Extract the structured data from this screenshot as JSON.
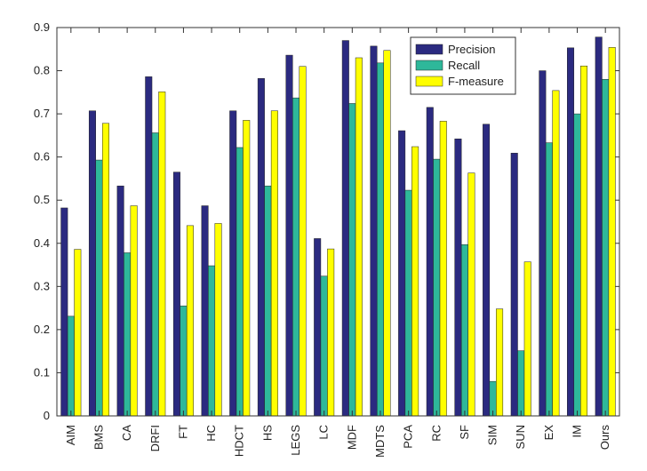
{
  "chart_data": {
    "type": "bar",
    "title": "",
    "xlabel": "",
    "ylabel": "",
    "ylim": [
      0,
      0.9
    ],
    "yticks": [
      "0",
      "0.1",
      "0.2",
      "0.3",
      "0.4",
      "0.5",
      "0.6",
      "0.7",
      "0.8",
      "0.9"
    ],
    "grid": false,
    "legend_position": "top-right",
    "categories": [
      "AIM",
      "BMS",
      "CA",
      "DRFI",
      "FT",
      "HC",
      "HDCT",
      "HS",
      "LEGS",
      "LC",
      "MDF",
      "MDTS",
      "PCA",
      "RC",
      "SF",
      "SIM",
      "SUN",
      "EX",
      "IM",
      "Ours"
    ],
    "series": [
      {
        "name": "Precision",
        "color": "#2b2a80",
        "values": [
          0.482,
          0.707,
          0.533,
          0.786,
          0.565,
          0.487,
          0.707,
          0.782,
          0.836,
          0.411,
          0.87,
          0.857,
          0.661,
          0.715,
          0.642,
          0.676,
          0.609,
          0.8,
          0.853,
          0.878
        ]
      },
      {
        "name": "Recall",
        "color": "#2eb89a",
        "values": [
          0.231,
          0.593,
          0.378,
          0.656,
          0.255,
          0.348,
          0.622,
          0.533,
          0.737,
          0.324,
          0.724,
          0.818,
          0.523,
          0.595,
          0.397,
          0.08,
          0.151,
          0.633,
          0.7,
          0.78
        ]
      },
      {
        "name": "F-measure",
        "color": "#ffff00",
        "values": [
          0.386,
          0.678,
          0.487,
          0.751,
          0.441,
          0.446,
          0.685,
          0.707,
          0.81,
          0.387,
          0.83,
          0.847,
          0.624,
          0.683,
          0.563,
          0.248,
          0.357,
          0.754,
          0.811,
          0.854
        ]
      }
    ]
  }
}
